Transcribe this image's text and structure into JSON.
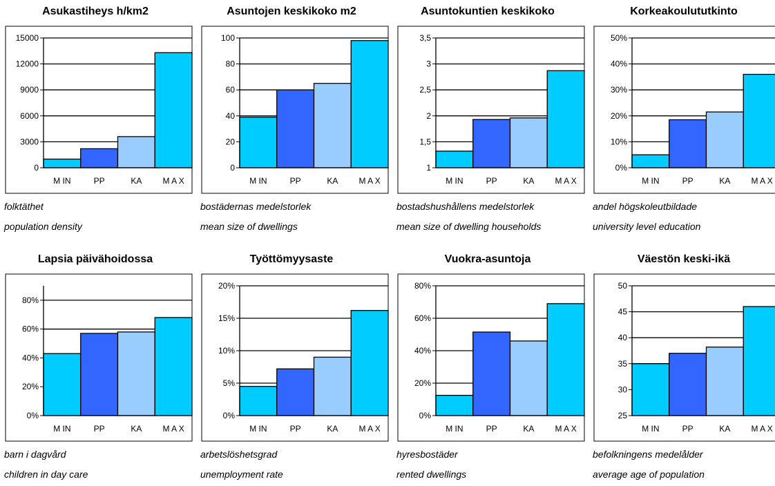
{
  "colors": {
    "MIN": "#00ccff",
    "PP": "#3366ff",
    "KA": "#99ccff",
    "MAX": "#00ccff"
  },
  "chart_data": [
    {
      "type": "bar",
      "title": "Asukastiheys h/km2",
      "caption_sv": "folktäthet",
      "caption_en": "population density",
      "categories": [
        "MIN",
        "PP",
        "KA",
        "MAX"
      ],
      "category_labels": [
        "M IN",
        "PP",
        "KA",
        "M A X"
      ],
      "values": [
        1000,
        2200,
        3600,
        13300
      ],
      "ylim": [
        0,
        15000
      ],
      "yticks": [
        0,
        3000,
        6000,
        9000,
        12000,
        15000
      ],
      "ytick_labels": [
        "0",
        "3000",
        "6000",
        "9000",
        "12000",
        "15000"
      ]
    },
    {
      "type": "bar",
      "title": "Asuntojen keskikoko m2",
      "caption_sv": "bostädernas medelstorlek",
      "caption_en": "mean size of dwellings",
      "categories": [
        "MIN",
        "PP",
        "KA",
        "MAX"
      ],
      "category_labels": [
        "M IN",
        "PP",
        "KA",
        "M A X"
      ],
      "values": [
        39,
        60,
        65,
        98
      ],
      "ylim": [
        0,
        100
      ],
      "yticks": [
        0,
        20,
        40,
        60,
        80,
        100
      ],
      "ytick_labels": [
        "0",
        "20",
        "40",
        "60",
        "80",
        "100"
      ]
    },
    {
      "type": "bar",
      "title": "Asuntokuntien keskikoko",
      "caption_sv": "bostadshushållens medelstorlek",
      "caption_en": "mean size of dwelling households",
      "categories": [
        "MIN",
        "PP",
        "KA",
        "MAX"
      ],
      "category_labels": [
        "M IN",
        "PP",
        "KA",
        "M A X"
      ],
      "values": [
        1.32,
        1.93,
        1.96,
        2.87
      ],
      "ylim": [
        1,
        3.5
      ],
      "yticks": [
        1,
        1.5,
        2,
        2.5,
        3,
        3.5
      ],
      "ytick_labels": [
        "1",
        "1,5",
        "2",
        "2,5",
        "3",
        "3,5"
      ]
    },
    {
      "type": "bar",
      "title": "Korkeakoulututkinto",
      "caption_sv": "andel högskoleutbildade",
      "caption_en": "university level education",
      "categories": [
        "MIN",
        "PP",
        "KA",
        "MAX"
      ],
      "category_labels": [
        "M IN",
        "PP",
        "KA",
        "M A X"
      ],
      "values": [
        5,
        18.5,
        21.5,
        36
      ],
      "ylim": [
        0,
        50
      ],
      "yticks": [
        0,
        10,
        20,
        30,
        40,
        50
      ],
      "ytick_labels": [
        "0%",
        "10%",
        "20%",
        "30%",
        "40%",
        "50%"
      ]
    },
    {
      "type": "bar",
      "title": "Lapsia päivähoidossa",
      "caption_sv": "barn i dagvård",
      "caption_en": "children in day care",
      "categories": [
        "MIN",
        "PP",
        "KA",
        "MAX"
      ],
      "category_labels": [
        "M IN",
        "PP",
        "KA",
        "M A X"
      ],
      "values": [
        43,
        57,
        58,
        68
      ],
      "ylim": [
        0,
        90
      ],
      "yticks": [
        0,
        20,
        40,
        60,
        80
      ],
      "ytick_labels": [
        "0%",
        "20%",
        "40%",
        "60%",
        "80%"
      ]
    },
    {
      "type": "bar",
      "title": "Työttömyysaste",
      "caption_sv": "arbetslöshetsgrad",
      "caption_en": "unemployment rate",
      "categories": [
        "MIN",
        "PP",
        "KA",
        "MAX"
      ],
      "category_labels": [
        "M IN",
        "PP",
        "KA",
        "M A X"
      ],
      "values": [
        4.5,
        7.2,
        9.0,
        16.2
      ],
      "ylim": [
        0,
        20
      ],
      "yticks": [
        0,
        5,
        10,
        15,
        20
      ],
      "ytick_labels": [
        "0%",
        "5%",
        "10%",
        "15%",
        "20%"
      ]
    },
    {
      "type": "bar",
      "title": "Vuokra-asuntoja",
      "caption_sv": "hyresbostäder",
      "caption_en": "rented dwellings",
      "categories": [
        "MIN",
        "PP",
        "KA",
        "MAX"
      ],
      "category_labels": [
        "M IN",
        "PP",
        "KA",
        "M A X"
      ],
      "values": [
        12.5,
        51.5,
        46,
        69
      ],
      "ylim": [
        0,
        80
      ],
      "yticks": [
        0,
        20,
        40,
        60,
        80
      ],
      "ytick_labels": [
        "0%",
        "20%",
        "40%",
        "60%",
        "80%"
      ]
    },
    {
      "type": "bar",
      "title": "Väestön keski-ikä",
      "caption_sv": "befolkningens medelålder",
      "caption_en": "average age of population",
      "categories": [
        "MIN",
        "PP",
        "KA",
        "MAX"
      ],
      "category_labels": [
        "M IN",
        "PP",
        "KA",
        "M A X"
      ],
      "values": [
        35,
        37,
        38.2,
        46
      ],
      "ylim": [
        25,
        50
      ],
      "yticks": [
        25,
        30,
        35,
        40,
        45,
        50
      ],
      "ytick_labels": [
        "25",
        "30",
        "35",
        "40",
        "45",
        "50"
      ]
    }
  ]
}
